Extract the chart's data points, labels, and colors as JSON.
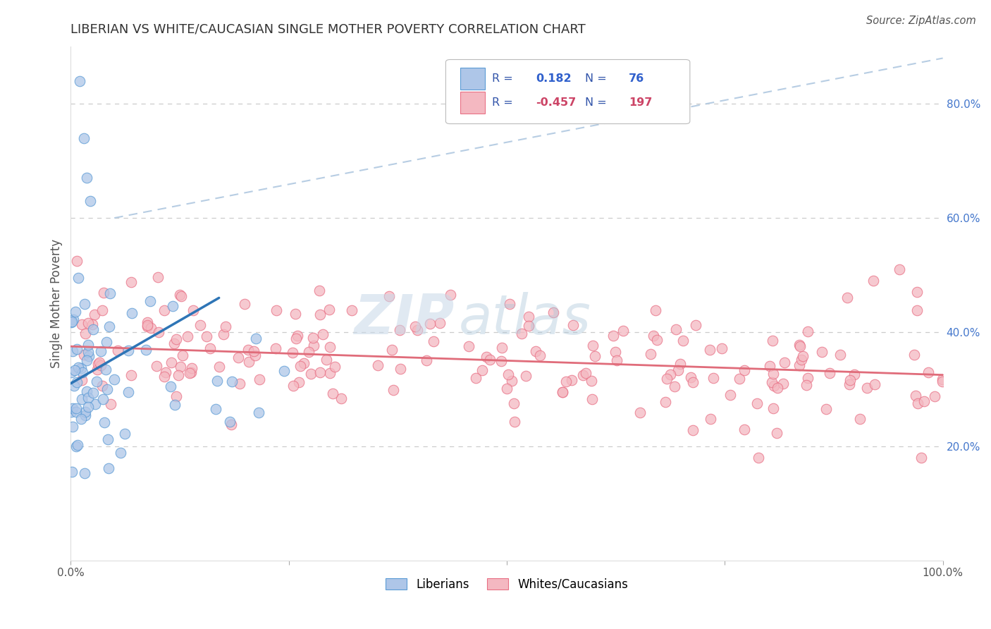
{
  "title": "LIBERIAN VS WHITE/CAUCASIAN SINGLE MOTHER POVERTY CORRELATION CHART",
  "source": "Source: ZipAtlas.com",
  "ylabel": "Single Mother Poverty",
  "xlim": [
    0,
    1
  ],
  "ylim": [
    0,
    0.9
  ],
  "yticks": [
    0.2,
    0.4,
    0.6,
    0.8
  ],
  "ytick_labels": [
    "20.0%",
    "40.0%",
    "60.0%",
    "80.0%"
  ],
  "liberian_color": "#aec6e8",
  "liberian_edge_color": "#5b9bd5",
  "white_color": "#f4b8c1",
  "white_edge_color": "#e87085",
  "r_liberian": 0.182,
  "n_liberian": 76,
  "r_white": -0.457,
  "n_white": 197,
  "watermark_zip": "ZIP",
  "watermark_atlas": "atlas",
  "legend_label_liberian": "Liberians",
  "legend_label_white": "Whites/Caucasians",
  "background_color": "#ffffff",
  "grid_color": "#cccccc",
  "trend_liberian_color": "#2e75b6",
  "trend_white_color": "#e06c7a",
  "diagonal_color": "#b0c8e0",
  "legend_text_color": "#3355aa",
  "legend_r_liberian_color": "#3060cc",
  "legend_r_white_color": "#cc4466",
  "axis_text_color": "#4477cc"
}
